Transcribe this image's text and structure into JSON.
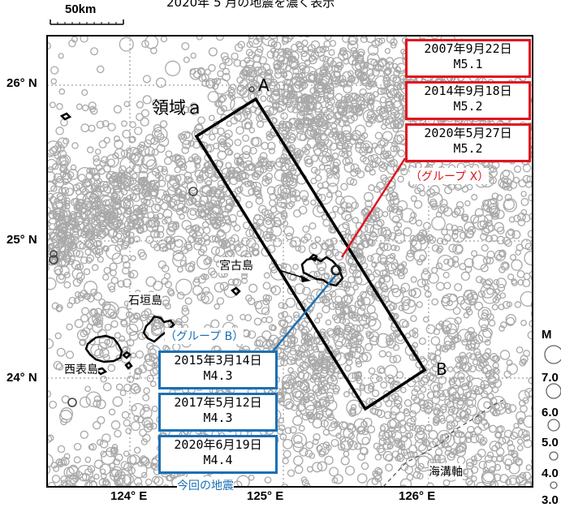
{
  "title": "2020年 5 月の地震を濃く表示",
  "scale_label": "50km",
  "region_label": "領域ａ",
  "endpoint_a": "A",
  "endpoint_b": "B",
  "trench_label": "海溝軸",
  "islands": {
    "miyako": "宮古島",
    "ishigaki": "石垣島",
    "iriomote": "西表島"
  },
  "lat_labels": [
    "26° N",
    "25° N",
    "24° N"
  ],
  "lon_labels": [
    "124° E",
    "125° E",
    "126° E"
  ],
  "group_x": {
    "label": "（グループ X）",
    "color": "#e0141e",
    "events": [
      {
        "date": "2007年9月22日",
        "mag": "M5.1"
      },
      {
        "date": "2014年9月18日",
        "mag": "M5.2"
      },
      {
        "date": "2020年5月27日",
        "mag": "M5.2"
      }
    ]
  },
  "group_b": {
    "label": "（グループ B）",
    "color": "#1b6fb5",
    "events": [
      {
        "date": "2015年3月14日",
        "mag": "M4.3"
      },
      {
        "date": "2017年5月12日",
        "mag": "M4.3"
      },
      {
        "date": "2020年6月19日",
        "mag": "M4.4"
      }
    ],
    "note": "今回の地震"
  },
  "magnitude_legend": {
    "title": "M",
    "values": [
      "7.0",
      "6.0",
      "5.0",
      "4.0",
      "3.0"
    ]
  },
  "colors": {
    "quake": "#a9a9a9",
    "highlight": "#222222",
    "frame": "#000000"
  }
}
